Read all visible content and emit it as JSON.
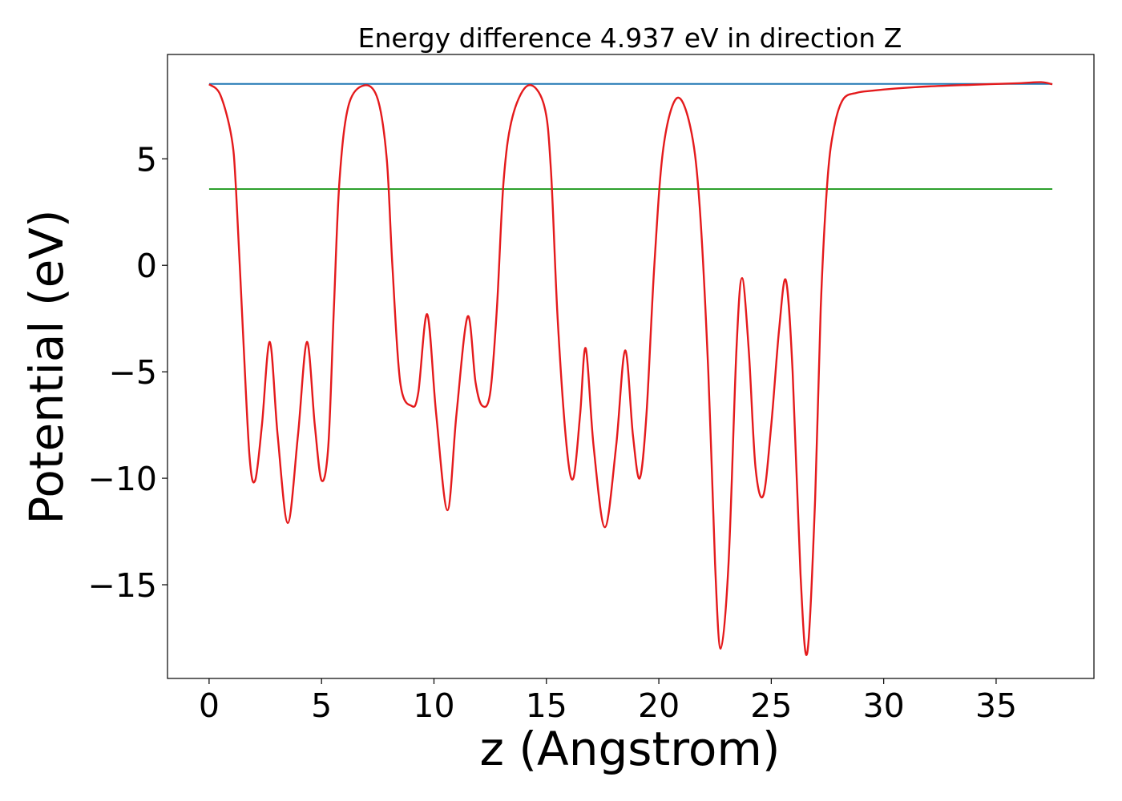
{
  "chart_data": {
    "type": "line",
    "title": "Energy difference 4.937 eV in direction Z",
    "xlabel": "z (Angstrom)",
    "ylabel": "Potential (eV)",
    "xlim": [
      -1.85,
      39.35
    ],
    "ylim": [
      -19.4,
      9.9
    ],
    "xticks": [
      0,
      5,
      10,
      15,
      20,
      25,
      30,
      35
    ],
    "yticks": [
      -15,
      -10,
      -5,
      0,
      5
    ],
    "grid": false,
    "legend": "none",
    "series": [
      {
        "color": "#1f77b4",
        "x": [
          0,
          37.5
        ],
        "y": [
          8.52,
          8.52
        ]
      },
      {
        "color": "#2ca02c",
        "x": [
          0,
          37.5
        ],
        "y": [
          3.58,
          3.58
        ]
      },
      {
        "color": "#e41a1c",
        "x": [
          0,
          0.5,
          1.0,
          1.2,
          1.5,
          1.8,
          2.05,
          2.35,
          2.7,
          3.05,
          3.5,
          3.95,
          4.35,
          4.7,
          5.0,
          5.3,
          5.55,
          5.8,
          6.2,
          6.9,
          7.5,
          7.9,
          8.15,
          8.5,
          9.0,
          9.3,
          9.7,
          10.1,
          10.6,
          11.0,
          11.5,
          11.85,
          12.15,
          12.5,
          12.8,
          13.1,
          13.5,
          14.2,
          14.9,
          15.2,
          15.5,
          15.9,
          16.2,
          16.5,
          16.75,
          17.1,
          17.6,
          18.1,
          18.5,
          18.85,
          19.15,
          19.45,
          19.8,
          20.2,
          20.8,
          21.4,
          21.8,
          22.2,
          22.5,
          22.75,
          23.1,
          23.45,
          23.7,
          24.0,
          24.3,
          24.65,
          25.0,
          25.35,
          25.65,
          25.95,
          26.3,
          26.6,
          26.95,
          27.2,
          27.5,
          27.8,
          28.2,
          28.8,
          29.5,
          30.5,
          32.0,
          34.0,
          36.0,
          37.0,
          37.5
        ],
        "y": [
          8.5,
          8.0,
          6.0,
          3.5,
          -3.0,
          -9.0,
          -10.1,
          -7.5,
          -3.6,
          -8.0,
          -12.1,
          -8.0,
          -3.6,
          -7.5,
          -10.1,
          -8.5,
          -2.0,
          4.0,
          7.5,
          8.45,
          7.8,
          5.0,
          0.0,
          -5.5,
          -6.6,
          -6.0,
          -2.3,
          -7.0,
          -11.5,
          -7.0,
          -2.4,
          -5.5,
          -6.6,
          -6.0,
          -2.0,
          4.0,
          7.0,
          8.45,
          7.5,
          4.5,
          -2.5,
          -8.5,
          -10.0,
          -7.0,
          -3.9,
          -8.5,
          -12.3,
          -8.5,
          -4.0,
          -8.0,
          -10.0,
          -7.0,
          0.0,
          5.5,
          7.85,
          6.5,
          3.0,
          -5.0,
          -14.0,
          -18.0,
          -14.0,
          -4.0,
          -0.6,
          -4.0,
          -9.5,
          -10.8,
          -7.5,
          -3.0,
          -0.7,
          -5.0,
          -14.5,
          -18.2,
          -11.0,
          -2.0,
          4.0,
          6.5,
          7.8,
          8.1,
          8.2,
          8.3,
          8.4,
          8.48,
          8.55,
          8.6,
          8.5
        ]
      }
    ]
  }
}
